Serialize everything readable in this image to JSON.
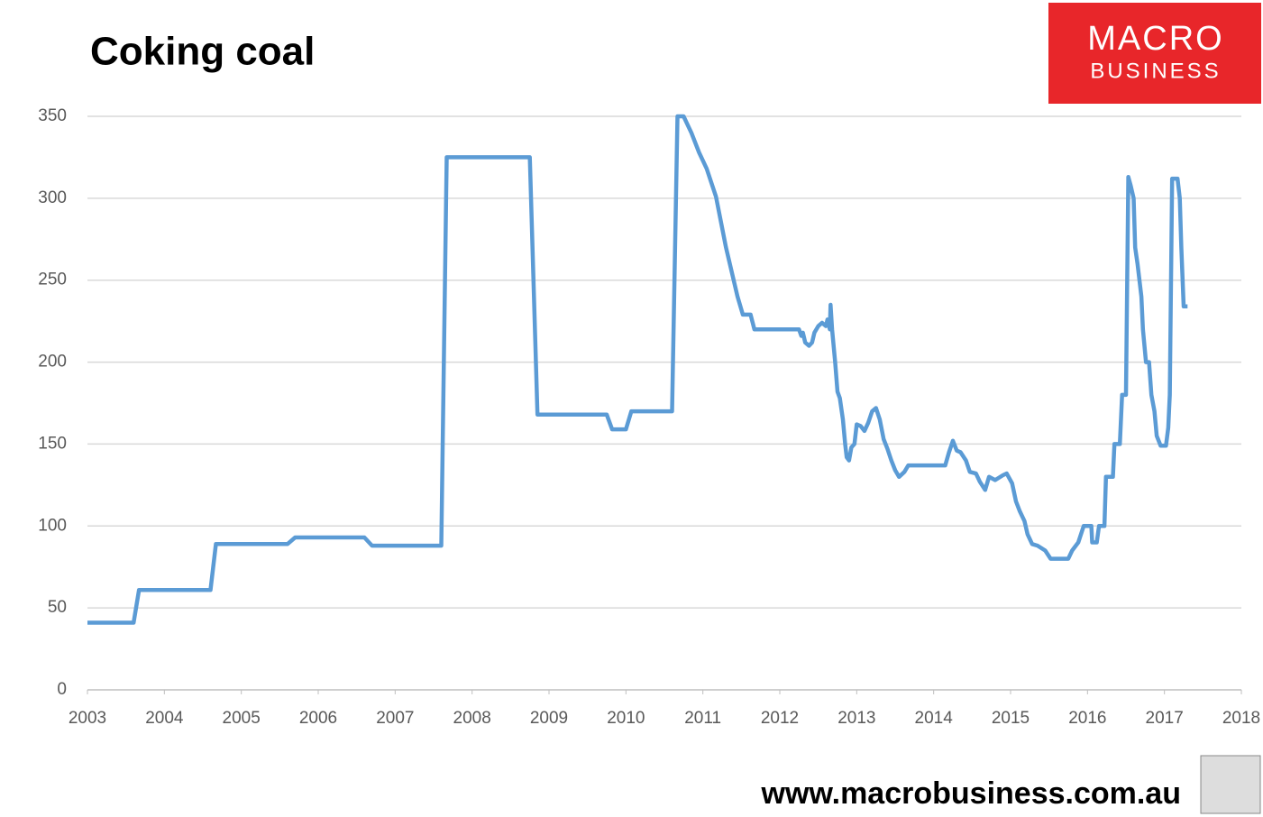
{
  "chart_data": {
    "type": "line",
    "title": "Coking coal",
    "x": [
      2003.0,
      2003.6,
      2003.67,
      2004.6,
      2004.67,
      2005.6,
      2005.7,
      2006.6,
      2006.7,
      2007.6,
      2007.67,
      2008.75,
      2008.85,
      2009.75,
      2009.82,
      2010.0,
      2010.07,
      2010.6,
      2010.67,
      2010.75,
      2010.85,
      2010.95,
      2011.05,
      2011.17,
      2011.3,
      2011.45,
      2011.52,
      2011.62,
      2011.67,
      2012.25,
      2012.28,
      2012.3,
      2012.33,
      2012.38,
      2012.42,
      2012.45,
      2012.5,
      2012.55,
      2012.6,
      2012.62,
      2012.65,
      2012.66,
      2012.68,
      2012.72,
      2012.75,
      2012.78,
      2012.82,
      2012.85,
      2012.87,
      2012.9,
      2012.93,
      2012.97,
      2013.0,
      2013.05,
      2013.1,
      2013.15,
      2013.2,
      2013.25,
      2013.3,
      2013.35,
      2013.4,
      2013.45,
      2013.5,
      2013.55,
      2013.62,
      2013.67,
      2014.15,
      2014.2,
      2014.25,
      2014.3,
      2014.35,
      2014.42,
      2014.47,
      2014.55,
      2014.6,
      2014.67,
      2014.72,
      2014.8,
      2014.9,
      2014.95,
      2015.02,
      2015.07,
      2015.12,
      2015.18,
      2015.22,
      2015.28,
      2015.35,
      2015.45,
      2015.52,
      2015.75,
      2015.8,
      2015.88,
      2015.95,
      2016.05,
      2016.06,
      2016.12,
      2016.15,
      2016.22,
      2016.24,
      2016.33,
      2016.35,
      2016.42,
      2016.45,
      2016.5,
      2016.53,
      2016.56,
      2016.6,
      2016.62,
      2016.65,
      2016.7,
      2016.72,
      2016.76,
      2016.8,
      2016.83,
      2016.87,
      2016.9,
      2016.95,
      2017.02,
      2017.05,
      2017.07,
      2017.1,
      2017.17,
      2017.2,
      2017.22,
      2017.25,
      2017.3
    ],
    "values": [
      41,
      41,
      61,
      61,
      89,
      89,
      93,
      93,
      88,
      88,
      325,
      325,
      168,
      168,
      159,
      159,
      170,
      170,
      350,
      350,
      340,
      328,
      318,
      301,
      270,
      240,
      229,
      229,
      220,
      220,
      216,
      218,
      212,
      210,
      212,
      218,
      222,
      224,
      222,
      226,
      220,
      235,
      220,
      200,
      182,
      178,
      165,
      150,
      142,
      140,
      148,
      150,
      162,
      161,
      158,
      163,
      170,
      172,
      165,
      153,
      147,
      140,
      134,
      130,
      133,
      137,
      137,
      145,
      152,
      146,
      145,
      140,
      133,
      132,
      127,
      122,
      130,
      128,
      131,
      132,
      126,
      115,
      109,
      103,
      95,
      89,
      88,
      85,
      80,
      80,
      85,
      90,
      100,
      100,
      90,
      90,
      100,
      100,
      130,
      130,
      150,
      150,
      180,
      180,
      313,
      308,
      300,
      270,
      260,
      240,
      220,
      200,
      200,
      180,
      170,
      155,
      149,
      149,
      160,
      180,
      312,
      312,
      300,
      270,
      234,
      234
    ],
    "color": "#5b9bd5",
    "xlim": [
      2003,
      2018
    ],
    "xticks": [
      2003,
      2004,
      2005,
      2006,
      2007,
      2008,
      2009,
      2010,
      2011,
      2012,
      2013,
      2014,
      2015,
      2016,
      2017,
      2018
    ],
    "ylim": [
      0,
      350
    ],
    "yticks": [
      0,
      50,
      100,
      150,
      200,
      250,
      300,
      350
    ],
    "grid": true
  },
  "logo": {
    "line1": "MACRO",
    "line2": "BUSINESS"
  },
  "footer": "www.macrobusiness.com.au"
}
